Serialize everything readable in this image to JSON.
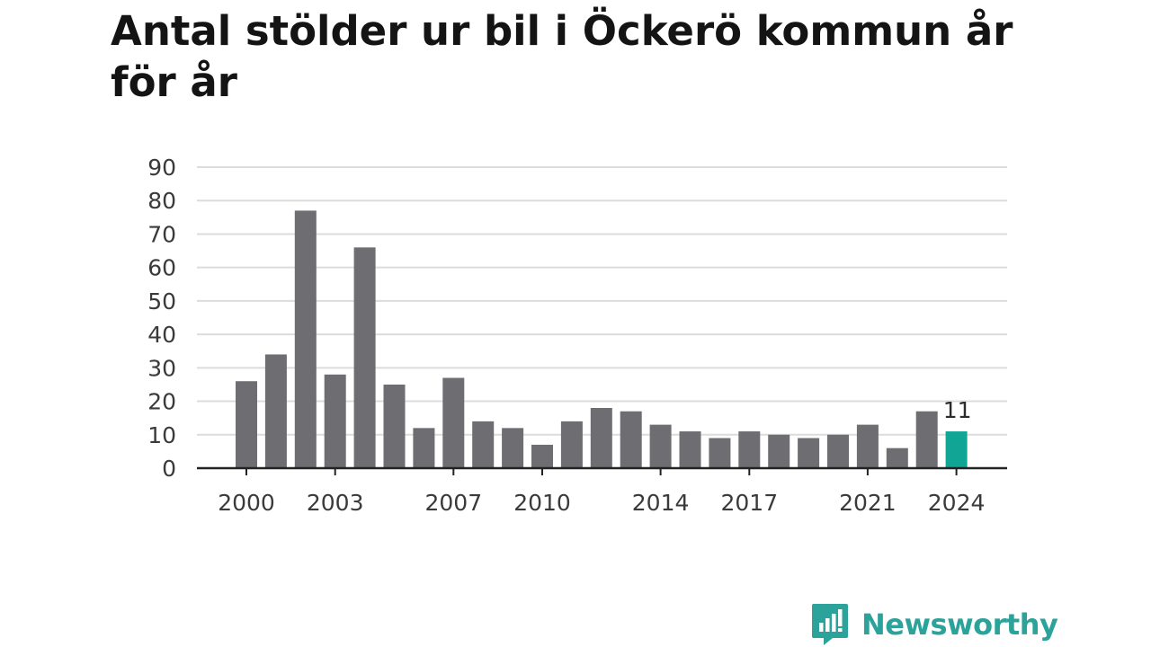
{
  "title": "Antal stölder ur bil i Öckerö kommun år för år",
  "brand": {
    "name": "Newsworthy",
    "color": "#2ba39a"
  },
  "colors": {
    "bar": "#6e6d72",
    "highlight": "#11a596",
    "grid": "#dcdcdc",
    "axis": "#222222"
  },
  "chart_data": {
    "type": "bar",
    "title": "Antal stölder ur bil i Öckerö kommun år för år",
    "xlabel": "",
    "ylabel": "",
    "ylim": [
      0,
      90
    ],
    "yticks": [
      0,
      10,
      20,
      30,
      40,
      50,
      60,
      70,
      80,
      90
    ],
    "xticks": [
      2000,
      2003,
      2007,
      2010,
      2014,
      2017,
      2021,
      2024
    ],
    "grid": true,
    "categories": [
      2000,
      2001,
      2002,
      2003,
      2004,
      2005,
      2006,
      2007,
      2008,
      2009,
      2010,
      2011,
      2012,
      2013,
      2014,
      2015,
      2016,
      2017,
      2018,
      2019,
      2020,
      2021,
      2022,
      2023,
      2024
    ],
    "values": [
      26,
      34,
      77,
      28,
      66,
      25,
      12,
      27,
      14,
      12,
      7,
      14,
      18,
      17,
      13,
      11,
      9,
      11,
      10,
      9,
      10,
      13,
      6,
      17,
      11
    ],
    "highlight": {
      "category": 2024,
      "label": "11"
    }
  }
}
